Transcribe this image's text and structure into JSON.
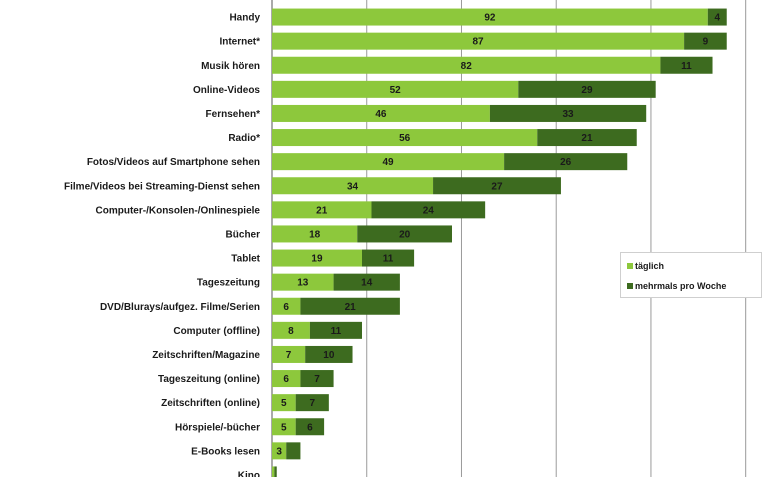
{
  "chart_data": {
    "type": "bar",
    "orientation": "horizontal",
    "stacked": true,
    "categories": [
      "Handy",
      "Internet*",
      "Musik hören",
      "Online-Videos",
      "Fernsehen*",
      "Radio*",
      "Fotos/Videos auf Smartphone sehen",
      "Filme/Videos bei Streaming-Dienst sehen",
      "Computer-/Konsolen-/Onlinespiele",
      "Bücher",
      "Tablet",
      "Tageszeitung",
      "DVD/Blurays/aufgez. Filme/Serien",
      "Computer (offline)",
      "Zeitschriften/Magazine",
      "Tageszeitung (online)",
      "Zeitschriften (online)",
      "Hörspiele/-bücher",
      "E-Books lesen",
      "Kino"
    ],
    "series": [
      {
        "name": "täglich",
        "color": "#8dc83c",
        "values": [
          92,
          87,
          82,
          52,
          46,
          56,
          49,
          34,
          21,
          18,
          19,
          13,
          6,
          8,
          7,
          6,
          5,
          5,
          3,
          0.5
        ],
        "labels": [
          "92",
          "87",
          "82",
          "52",
          "46",
          "56",
          "49",
          "34",
          "21",
          "18",
          "19",
          "13",
          "6",
          "8",
          "7",
          "6",
          "5",
          "5",
          "3",
          ""
        ]
      },
      {
        "name": "mehrmals pro Woche",
        "color": "#3d6b1f",
        "values": [
          4,
          9,
          11,
          29,
          33,
          21,
          26,
          27,
          24,
          20,
          11,
          14,
          21,
          11,
          10,
          7,
          7,
          6,
          3,
          0.5
        ],
        "labels": [
          "4",
          "9",
          "11",
          "29",
          "33",
          "21",
          "26",
          "27",
          "24",
          "20",
          "11",
          "14",
          "21",
          "11",
          "10",
          "7",
          "7",
          "6",
          "",
          ""
        ]
      }
    ],
    "xlim": [
      0,
      100
    ],
    "grid": true,
    "legend_position": "right"
  }
}
